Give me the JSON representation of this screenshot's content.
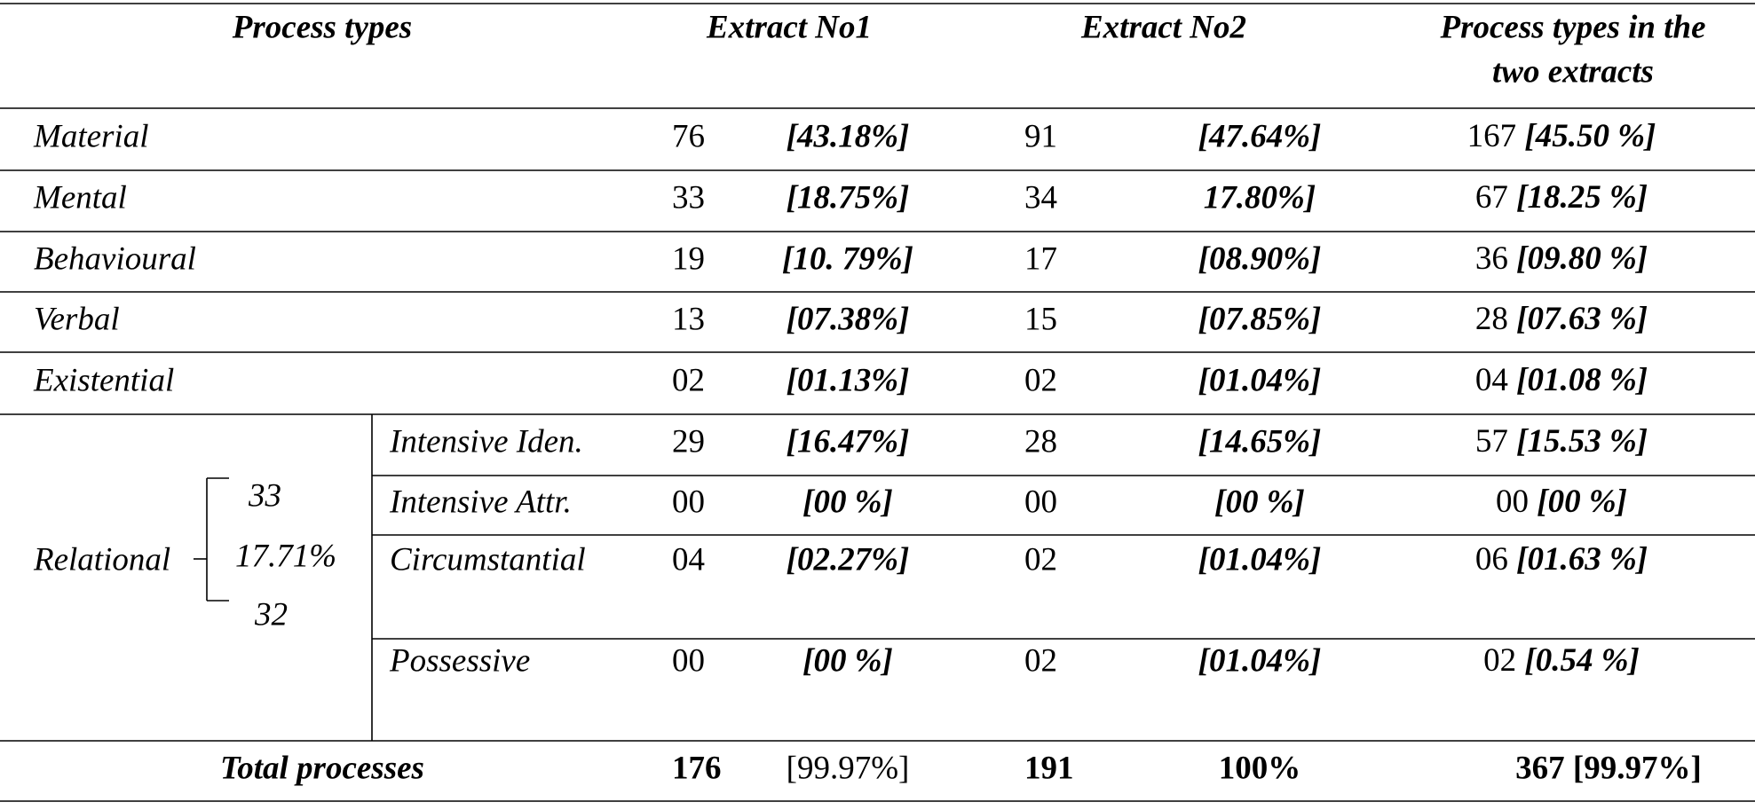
{
  "table": {
    "header": [
      "Process types",
      "Extract No1",
      "Extract No2",
      [
        "Process types in the",
        "two extracts"
      ]
    ],
    "rows": [
      {
        "label": "Material",
        "e1": "76",
        "e1_pct": "[43.18%]",
        "e2": "91",
        "e2_pct": "[47.64%]",
        "total": "167",
        "total_pct": "[45.50 %]"
      },
      {
        "label": "Mental",
        "e1": "33",
        "e1_pct": "[18.75%]",
        "e2": "34",
        "e2_pct": "17.80%]",
        "total": "67",
        "total_pct": "[18.25 %]"
      },
      {
        "label": "Behavioural",
        "e1": "19",
        "e1_pct": "[10. 79%]",
        "e2": "17",
        "e2_pct": "[08.90%]",
        "total": "36",
        "total_pct": "[09.80 %]"
      },
      {
        "label": "Verbal",
        "e1": "13",
        "e1_pct": "[07.38%]",
        "e2": "15",
        "e2_pct": "[07.85%]",
        "total": "28",
        "total_pct": "[07.63 %]"
      },
      {
        "label": "Existential",
        "e1": "02",
        "e1_pct": "[01.13%]",
        "e2": "02",
        "e2_pct": "[01.04%]",
        "total": "04",
        "total_pct": "[01.08 %]"
      }
    ],
    "relational": {
      "label": "Relational",
      "bracket": [
        "33",
        "17.71%",
        "32"
      ],
      "rows": [
        {
          "label": "Intensive Iden.",
          "e1": "29",
          "e1_pct": "[16.47%]",
          "e2": "28",
          "e2_pct": "[14.65%]",
          "total": "57",
          "total_pct": "[15.53 %]"
        },
        {
          "label": "Intensive Attr.",
          "e1": "00",
          "e1_pct": "[00 %]",
          "e2": "00",
          "e2_pct": "[00 %]",
          "total": "00",
          "total_pct": "[00 %]"
        },
        {
          "label": "Circumstantial",
          "e1": "04",
          "e1_pct": "[02.27%]",
          "e2": "02",
          "e2_pct": "[01.04%]",
          "total": "06",
          "total_pct": "[01.63 %]"
        },
        {
          "label": "Possessive",
          "e1": "00",
          "e1_pct": "[00 %]",
          "e2": "02",
          "e2_pct": "[01.04%]",
          "total": "02",
          "total_pct": "[0.54 %]"
        }
      ]
    },
    "total": {
      "label": "Total processes",
      "e1": "176",
      "e1_pct": "[99.97%]",
      "e2": "191",
      "e2_pct": "100%",
      "total": "367 [99.97%]"
    }
  }
}
